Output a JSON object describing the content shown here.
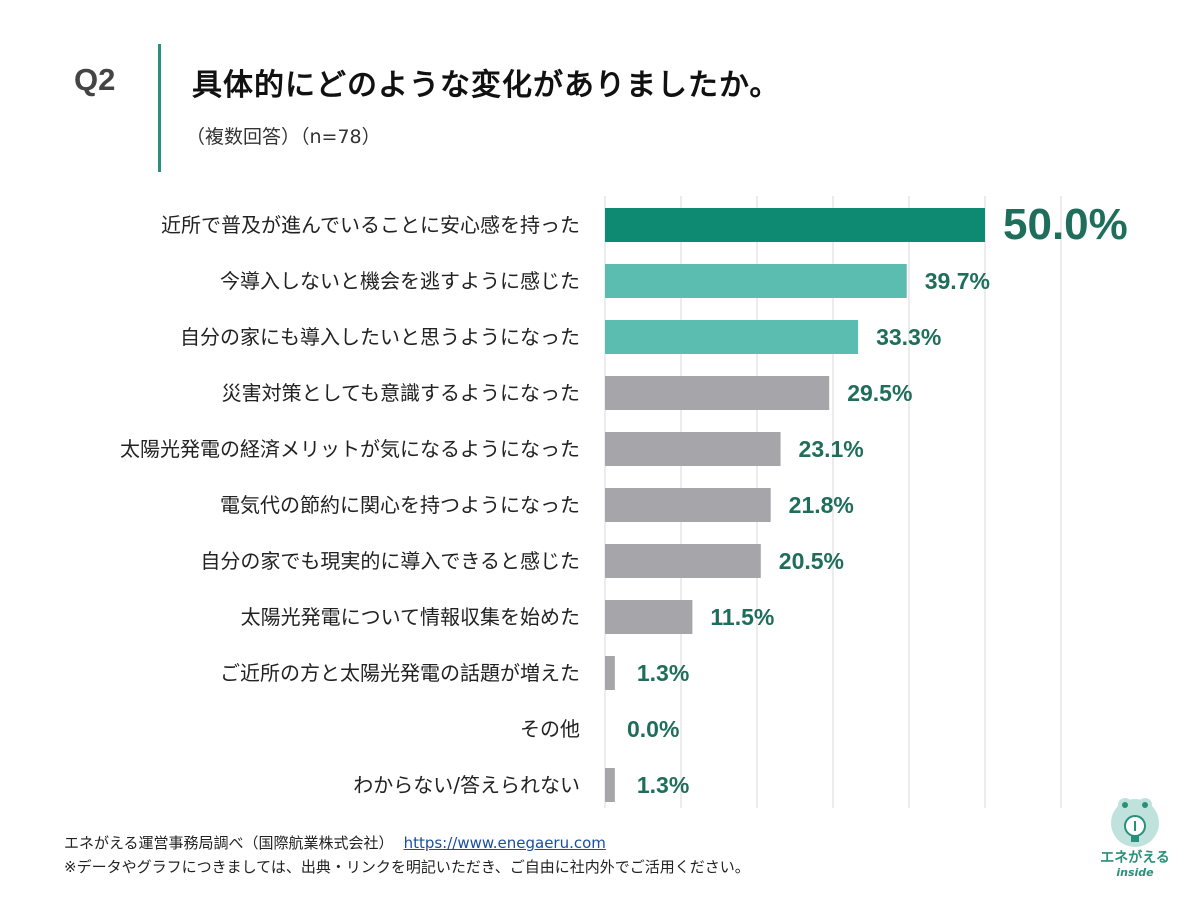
{
  "header": {
    "question": "Q2",
    "title": "具体的にどのような変化がありましたか。",
    "subtitle": "（複数回答）（n=78）"
  },
  "chart_data": {
    "type": "bar",
    "orientation": "horizontal",
    "title": "具体的にどのような変化がありましたか。",
    "subtitle": "（複数回答）（n=78）",
    "xlim": [
      0,
      50
    ],
    "grid": true,
    "value_suffix": "%",
    "categories": [
      "近所で普及が進んでいることに安心感を持った",
      "今導入しないと機会を逃すように感じた",
      "自分の家にも導入したいと思うようになった",
      "災害対策としても意識するようになった",
      "太陽光発電の経済メリットが気になるようになった",
      "電気代の節約に関心を持つようになった",
      "自分の家でも現実的に導入できると感じた",
      "太陽光発電について情報収集を始めた",
      "ご近所の方と太陽光発電の話題が増えた",
      "その他",
      "わからない/答えられない"
    ],
    "values": [
      50.0,
      39.7,
      33.3,
      29.5,
      23.1,
      21.8,
      20.5,
      11.5,
      1.3,
      0.0,
      1.3
    ],
    "value_labels": [
      "50.0%",
      "39.7%",
      "33.3%",
      "29.5%",
      "23.1%",
      "21.8%",
      "20.5%",
      "11.5%",
      "1.3%",
      "0.0%",
      "1.3%"
    ],
    "colors": {
      "top": "#0e8a72",
      "highlight": "#5bbcb0",
      "default": "#a6a6aa",
      "label": "#1f6e5c",
      "grid": "#d9d9d9"
    },
    "highlight_rule": "rank1 top, rank2-3 highlight, rest default"
  },
  "footer": {
    "source": "エネがえる運営事務局調べ（国際航業株式会社）",
    "url": "https://www.enegaeru.com",
    "note": "※データやグラフにつきましては、出典・リンクを明記いただき、ご自由に社内外でご活用ください。"
  },
  "logo": {
    "name": "エネがえる",
    "sub": "inside"
  }
}
